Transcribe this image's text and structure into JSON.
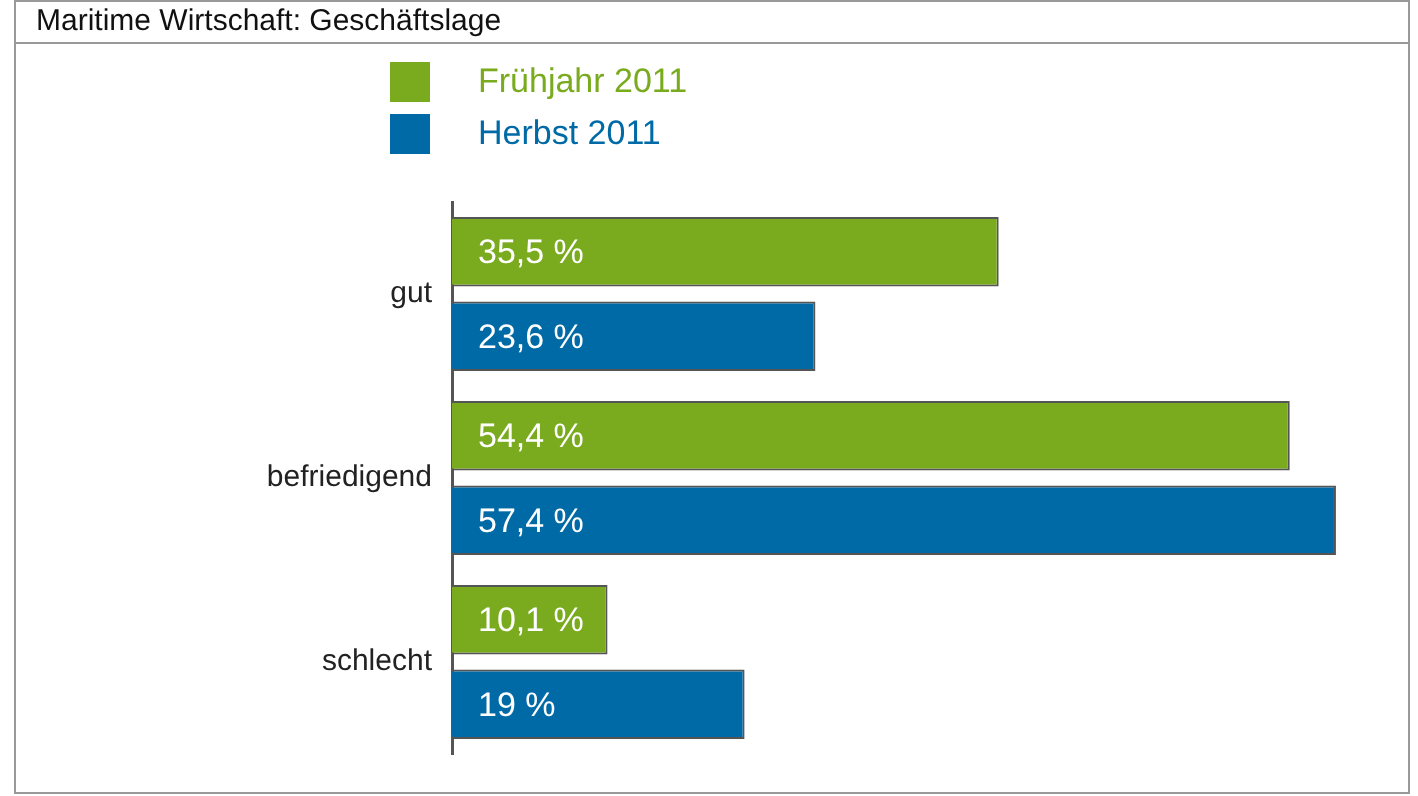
{
  "chart_data": {
    "type": "bar",
    "orientation": "horizontal",
    "title": "Maritime Wirtschaft: Geschäftslage",
    "categories": [
      "gut",
      "befriedigend",
      "schlecht"
    ],
    "series": [
      {
        "name": "Frühjahr 2011",
        "color": "#7aab1f",
        "values": [
          35.5,
          54.4,
          10.1
        ],
        "value_labels": [
          "35,5 %",
          "54,4 %",
          "10,1 %"
        ]
      },
      {
        "name": "Herbst 2011",
        "color": "#006aa6",
        "values": [
          23.6,
          57.4,
          19
        ],
        "value_labels": [
          "23,6 %",
          "57,4 %",
          "19 %"
        ]
      }
    ],
    "legend": "top left",
    "grid": false,
    "tick_labels": "y"
  }
}
